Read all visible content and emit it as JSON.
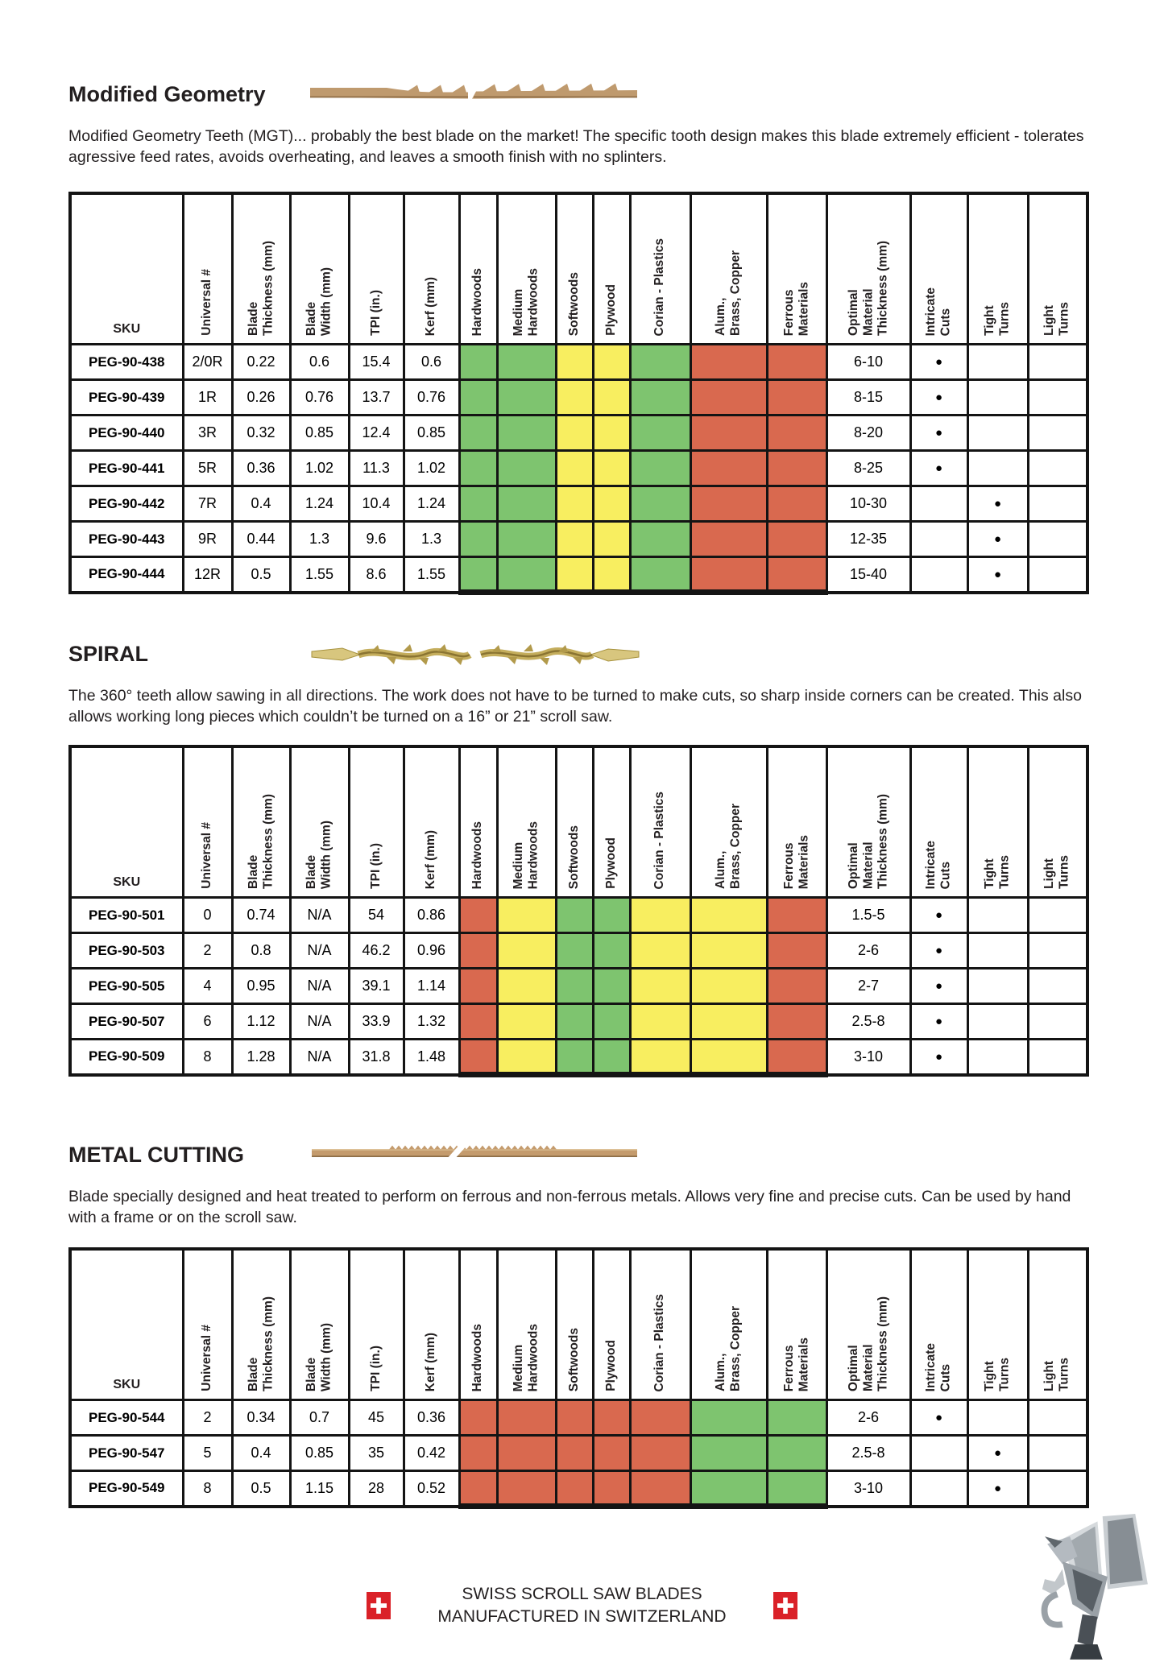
{
  "colors": {
    "g": "#7ec46f",
    "y": "#f8ee60",
    "r": "#d9694f"
  },
  "dot": "●",
  "headers": {
    "sku": "SKU",
    "universal": "Universal #",
    "blade_thickness": "Blade\nThickness (mm)",
    "blade_width": "Blade\nWidth (mm)",
    "tpi": "TPI (in.)",
    "kerf": "Kerf (mm)",
    "materials": [
      "Hardwoods",
      "Medium\nHardwoods",
      "Softwoods",
      "Plywood",
      "Corian  - Plastics",
      "Alum.,\nBrass, Copper",
      "Ferrous\nMaterials"
    ],
    "optimal": "Optimal\nMaterial\nThickness (mm)",
    "intricate": "Intricate\nCuts",
    "tight": "Tight\nTurns",
    "light": "Light\nTurns"
  },
  "sections": [
    {
      "id": "modified-geometry",
      "title": "Modified Geometry",
      "description": "Modified Geometry Teeth (MGT)... probably the best blade on the market! The specific tooth design makes this blade extremely efficient - tolerates agressive feed rates, avoids overheating, and leaves a smooth finish with no splinters.",
      "materials_pattern": [
        "g",
        "g",
        "y",
        "y",
        "g",
        "r",
        "r"
      ],
      "rows": [
        {
          "sku": "PEG-90-438",
          "universal": "2/0R",
          "blade_thickness": "0.22",
          "blade_width": "0.6",
          "tpi": "15.4",
          "kerf": "0.6",
          "optimal_thickness": "6-10",
          "intricate_cuts": true,
          "tight_turns": false,
          "light_turns": false
        },
        {
          "sku": "PEG-90-439",
          "universal": "1R",
          "blade_thickness": "0.26",
          "blade_width": "0.76",
          "tpi": "13.7",
          "kerf": "0.76",
          "optimal_thickness": "8-15",
          "intricate_cuts": true,
          "tight_turns": false,
          "light_turns": false
        },
        {
          "sku": "PEG-90-440",
          "universal": "3R",
          "blade_thickness": "0.32",
          "blade_width": "0.85",
          "tpi": "12.4",
          "kerf": "0.85",
          "optimal_thickness": "8-20",
          "intricate_cuts": true,
          "tight_turns": false,
          "light_turns": false
        },
        {
          "sku": "PEG-90-441",
          "universal": "5R",
          "blade_thickness": "0.36",
          "blade_width": "1.02",
          "tpi": "11.3",
          "kerf": "1.02",
          "optimal_thickness": "8-25",
          "intricate_cuts": true,
          "tight_turns": false,
          "light_turns": false
        },
        {
          "sku": "PEG-90-442",
          "universal": "7R",
          "blade_thickness": "0.4",
          "blade_width": "1.24",
          "tpi": "10.4",
          "kerf": "1.24",
          "optimal_thickness": "10-30",
          "intricate_cuts": false,
          "tight_turns": true,
          "light_turns": false
        },
        {
          "sku": "PEG-90-443",
          "universal": "9R",
          "blade_thickness": "0.44",
          "blade_width": "1.3",
          "tpi": "9.6",
          "kerf": "1.3",
          "optimal_thickness": "12-35",
          "intricate_cuts": false,
          "tight_turns": true,
          "light_turns": false
        },
        {
          "sku": "PEG-90-444",
          "universal": "12R",
          "blade_thickness": "0.5",
          "blade_width": "1.55",
          "tpi": "8.6",
          "kerf": "1.55",
          "optimal_thickness": "15-40",
          "intricate_cuts": false,
          "tight_turns": true,
          "light_turns": false
        }
      ]
    },
    {
      "id": "spiral",
      "title": "SPIRAL",
      "description": "The 360° teeth allow sawing in all directions. The work does not have to be turned to make cuts, so sharp inside corners can be created. This also allows working long pieces which couldn’t be turned on a 16” or 21” scroll saw.",
      "materials_pattern": [
        "r",
        "y",
        "g",
        "g",
        "y",
        "y",
        "r"
      ],
      "rows": [
        {
          "sku": "PEG-90-501",
          "universal": "0",
          "blade_thickness": "0.74",
          "blade_width": "N/A",
          "tpi": "54",
          "kerf": "0.86",
          "optimal_thickness": "1.5-5",
          "intricate_cuts": true,
          "tight_turns": false,
          "light_turns": false
        },
        {
          "sku": "PEG-90-503",
          "universal": "2",
          "blade_thickness": "0.8",
          "blade_width": "N/A",
          "tpi": "46.2",
          "kerf": "0.96",
          "optimal_thickness": "2-6",
          "intricate_cuts": true,
          "tight_turns": false,
          "light_turns": false
        },
        {
          "sku": "PEG-90-505",
          "universal": "4",
          "blade_thickness": "0.95",
          "blade_width": "N/A",
          "tpi": "39.1",
          "kerf": "1.14",
          "optimal_thickness": "2-7",
          "intricate_cuts": true,
          "tight_turns": false,
          "light_turns": false
        },
        {
          "sku": "PEG-90-507",
          "universal": "6",
          "blade_thickness": "1.12",
          "blade_width": "N/A",
          "tpi": "33.9",
          "kerf": "1.32",
          "optimal_thickness": "2.5-8",
          "intricate_cuts": true,
          "tight_turns": false,
          "light_turns": false
        },
        {
          "sku": "PEG-90-509",
          "universal": "8",
          "blade_thickness": "1.28",
          "blade_width": "N/A",
          "tpi": "31.8",
          "kerf": "1.48",
          "optimal_thickness": "3-10",
          "intricate_cuts": true,
          "tight_turns": false,
          "light_turns": false
        }
      ]
    },
    {
      "id": "metal-cutting",
      "title": "METAL CUTTING",
      "description": "Blade specially designed and heat treated to perform on ferrous and non-ferrous metals. Allows very fine and precise cuts. Can be used by hand with a frame or on the scroll saw.",
      "materials_pattern": [
        "r",
        "r",
        "r",
        "r",
        "r",
        "g",
        "g"
      ],
      "rows": [
        {
          "sku": "PEG-90-544",
          "universal": "2",
          "blade_thickness": "0.34",
          "blade_width": "0.7",
          "tpi": "45",
          "kerf": "0.36",
          "optimal_thickness": "2-6",
          "intricate_cuts": true,
          "tight_turns": false,
          "light_turns": false
        },
        {
          "sku": "PEG-90-547",
          "universal": "5",
          "blade_thickness": "0.4",
          "blade_width": "0.85",
          "tpi": "35",
          "kerf": "0.42",
          "optimal_thickness": "2.5-8",
          "intricate_cuts": false,
          "tight_turns": true,
          "light_turns": false
        },
        {
          "sku": "PEG-90-549",
          "universal": "8",
          "blade_thickness": "0.5",
          "blade_width": "1.15",
          "tpi": "28",
          "kerf": "0.52",
          "optimal_thickness": "3-10",
          "intricate_cuts": false,
          "tight_turns": true,
          "light_turns": false
        }
      ]
    }
  ],
  "footer": {
    "line1": "SWISS SCROLL SAW BLADES",
    "line2": "MANUFACTURED IN SWITZERLAND"
  }
}
